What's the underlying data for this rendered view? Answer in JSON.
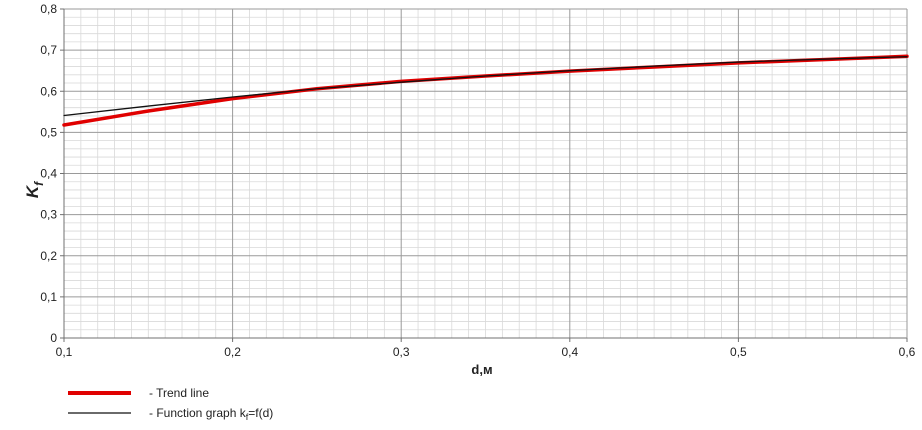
{
  "chart_data": {
    "type": "line",
    "xlabel": "d,м",
    "ylabel": {
      "main": "K",
      "sub": "f"
    },
    "xlim": [
      0.1,
      0.6
    ],
    "ylim": [
      0,
      0.8
    ],
    "x_ticks": [
      "0,1",
      "0,2",
      "0,3",
      "0,4",
      "0,5",
      "0,6"
    ],
    "y_ticks": [
      "0",
      "0,1",
      "0,2",
      "0,3",
      "0,4",
      "0,5",
      "0,6",
      "0,7",
      "0,8"
    ],
    "grid": true,
    "legend_position": "bottom-left",
    "series": [
      {
        "name": "Trend line",
        "legend_label": "- Trend line",
        "color": "#e00000",
        "x": [
          0.1,
          0.15,
          0.2,
          0.25,
          0.3,
          0.35,
          0.4,
          0.45,
          0.5,
          0.55,
          0.6
        ],
        "y": [
          0.518,
          0.552,
          0.582,
          0.606,
          0.624,
          0.637,
          0.649,
          0.659,
          0.669,
          0.677,
          0.685
        ]
      },
      {
        "name": "Function graph kf=f(d)",
        "legend_label": {
          "prefix": "- Function graph k",
          "sub": "f",
          "suffix": "=f(d)"
        },
        "color": "#111111",
        "x": [
          0.1,
          0.15,
          0.2,
          0.25,
          0.3,
          0.35,
          0.4,
          0.45,
          0.5,
          0.55,
          0.6
        ],
        "y": [
          0.541,
          0.564,
          0.586,
          0.606,
          0.622,
          0.637,
          0.65,
          0.661,
          0.671,
          0.678,
          0.684
        ]
      }
    ]
  }
}
